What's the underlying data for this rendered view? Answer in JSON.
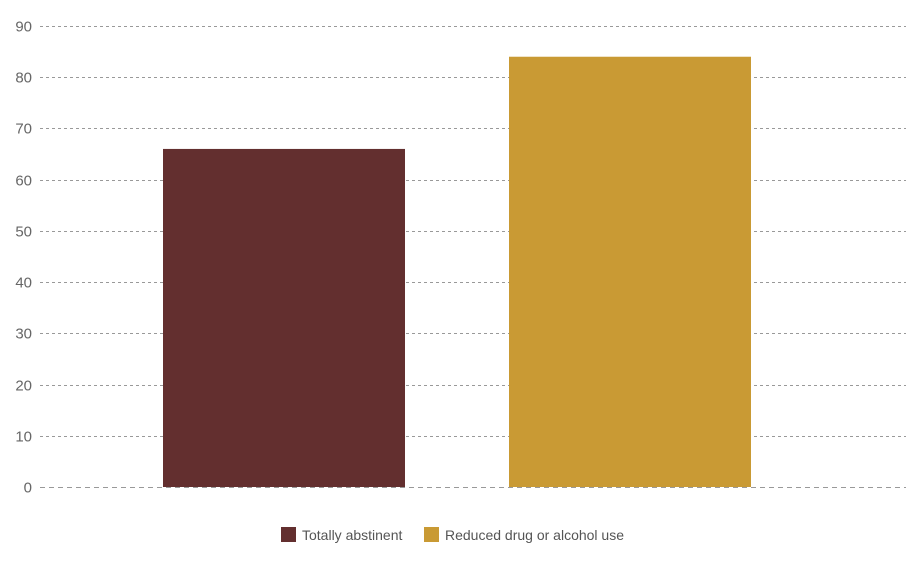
{
  "chart_data": {
    "type": "bar",
    "categories": [
      "Totally abstinent",
      "Reduced drug or alcohol use"
    ],
    "values": [
      66,
      84
    ],
    "colors": [
      "#632f2f",
      "#c99a34"
    ],
    "ylim": [
      0,
      90
    ],
    "yticks": [
      "0",
      "10",
      "20",
      "30",
      "40",
      "50",
      "60",
      "70",
      "80",
      "90"
    ],
    "grid": true,
    "grid_color": "#999999",
    "tick_color": "#666666",
    "legend": {
      "placement": "bottom-center",
      "entries": [
        {
          "label": "Totally abstinent",
          "color": "#632f2f"
        },
        {
          "label": "Reduced drug or alcohol use",
          "color": "#c99a34"
        }
      ]
    }
  }
}
